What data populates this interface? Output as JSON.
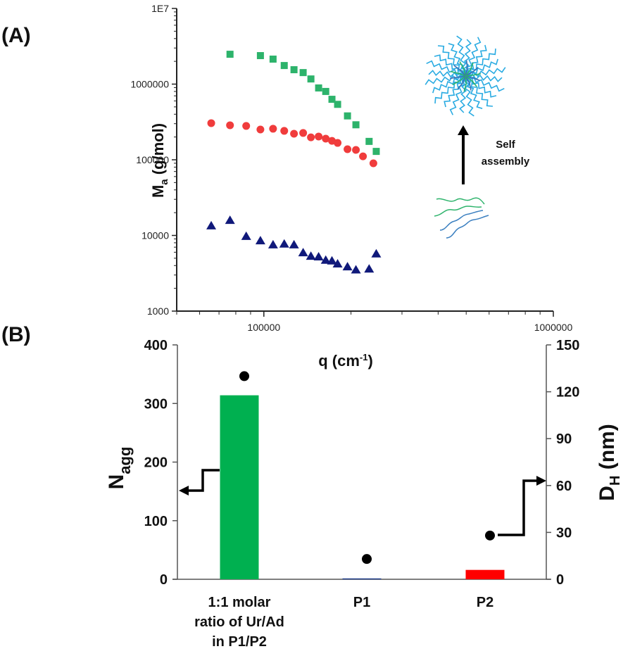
{
  "panel_labels": {
    "a": "(A)",
    "b": "(B)"
  },
  "chart_data": [
    {
      "type": "scatter",
      "panel": "A",
      "title": "",
      "xlabel": "q (cm",
      "xlabel_sup": "-1",
      "xlabel_tail": ")",
      "ylabel_main": "M",
      "ylabel_sub": "a",
      "ylabel_tail": " (g/mol)",
      "xscale": "log",
      "yscale": "log",
      "xlim": [
        50000,
        1000000
      ],
      "ylim": [
        1000,
        10000000
      ],
      "x_tick_values": [
        100000,
        1000000
      ],
      "x_tick_labels": [
        "100000",
        "1000000"
      ],
      "y_tick_values": [
        1000,
        10000,
        100000,
        1000000,
        10000000
      ],
      "y_tick_labels": [
        "1000",
        "10000",
        "100000",
        "1000000",
        "1E7"
      ],
      "grid": false,
      "legend": null,
      "series": [
        {
          "name": "1:1 molar ratio of Ur/Ad in P1/P2",
          "marker": "square",
          "color": "#2db36b",
          "x": [
            76400,
            97300,
            107600,
            117600,
            127100,
            136700,
            145400,
            154600,
            163600,
            171900,
            179800,
            194500,
            208000,
            231000,
            244500
          ],
          "y": [
            2480000,
            2380000,
            2140000,
            1760000,
            1550000,
            1420000,
            1170000,
            890000,
            800000,
            630000,
            540000,
            380000,
            290000,
            175000,
            129000
          ]
        },
        {
          "name": "P2",
          "marker": "circle",
          "color": "#f03c3c",
          "x": [
            65800,
            76400,
            86900,
            97300,
            107600,
            117600,
            127100,
            136700,
            145400,
            154600,
            163600,
            171900,
            179800,
            194500,
            208000,
            220000,
            239000
          ],
          "y": [
            305000,
            286000,
            280000,
            251000,
            257000,
            241000,
            221000,
            226000,
            198000,
            203000,
            190000,
            178000,
            167000,
            138000,
            135000,
            111000,
            89800
          ]
        },
        {
          "name": "P1",
          "marker": "triangle",
          "color": "#10197a",
          "x": [
            65800,
            76400,
            86900,
            97300,
            107600,
            117600,
            127100,
            136700,
            145400,
            154600,
            163600,
            171900,
            179800,
            194500,
            208000,
            231000,
            244500
          ],
          "y": [
            13400,
            15800,
            9700,
            8500,
            7500,
            7700,
            7500,
            5900,
            5300,
            5200,
            4700,
            4600,
            4200,
            3850,
            3500,
            3600,
            5700
          ]
        }
      ],
      "annotations": [
        {
          "text_lines": [
            "Self",
            "assembly"
          ],
          "kind": "arrow-up",
          "description": "unimers self-assemble into star micelle"
        }
      ]
    },
    {
      "type": "bar",
      "panel": "B",
      "title": "",
      "categories": [
        "1:1 molar ratio of Ur/Ad in P1/P2",
        "P1",
        "P2"
      ],
      "category_label_lines": [
        [
          "1:1 molar",
          "ratio of Ur/Ad",
          "in P1/P2"
        ],
        [
          "P1"
        ],
        [
          "P2"
        ]
      ],
      "ylabel_main": "N",
      "ylabel_sub": "agg",
      "y2label_main": "D",
      "y2label_sub": "H",
      "y2label_tail": " (nm)",
      "ylim": [
        0,
        400
      ],
      "y2lim": [
        0,
        150
      ],
      "y_ticks": [
        0,
        100,
        200,
        300,
        400
      ],
      "y2_ticks": [
        0,
        30,
        60,
        90,
        120,
        150
      ],
      "grid": false,
      "series": [
        {
          "name": "N_agg",
          "type": "bar",
          "axis": "left",
          "values": [
            314,
            1.5,
            16
          ],
          "colors": [
            "#00b050",
            "#1f3c88",
            "#ff0000"
          ]
        },
        {
          "name": "D_H (nm)",
          "type": "scatter",
          "axis": "right",
          "values": [
            130,
            13,
            28
          ],
          "color": "#000000"
        }
      ],
      "annotations": [
        {
          "kind": "arrow-left",
          "points_to": "left axis (N_agg)"
        },
        {
          "kind": "arrow-right",
          "points_to": "right axis (D_H)"
        }
      ]
    }
  ]
}
